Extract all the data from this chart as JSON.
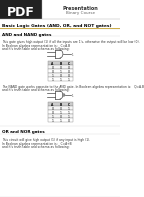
{
  "title": "Presentation",
  "subtitle": "Binary Course",
  "section_title": "Basic Logic Gates (AND, OR, and NOT gates)",
  "subsection1": "AND and NAND gates",
  "body1": "This gate gives high output (1) if all the inputs are 1's, otherwise the output will be low (0).",
  "body1b1": "In Boolean algebra representation is:   C=A.B",
  "body1b2": "and it's truth table and schema as following:",
  "nand_text1": "The NAND gate works opposite to the AND gate. In Boolean algebra representation is:   Q=A.B",
  "nand_text2": "and it's truth table and schema as following:",
  "subsection2": "OR and NOR gates",
  "body2": "This circuit will give high output (1) if any input is high (1).",
  "body2b1": "In Boolean algebra representation is:   C=A+B",
  "body2b2": "and it's truth table and schema as following:",
  "bg_color": "#ffffff",
  "header_bg": "#222222",
  "pdf_text": "PDF",
  "cols": [
    "A",
    "B",
    "C"
  ],
  "rows_and": [
    [
      "0",
      "0",
      "0"
    ],
    [
      "0",
      "1",
      "0"
    ],
    [
      "1",
      "0",
      "0"
    ],
    [
      "1",
      "1",
      "1"
    ]
  ],
  "rows_nand": [
    [
      "0",
      "0",
      "1"
    ],
    [
      "0",
      "1",
      "1"
    ],
    [
      "1",
      "0",
      "1"
    ],
    [
      "1",
      "1",
      "0"
    ]
  ]
}
